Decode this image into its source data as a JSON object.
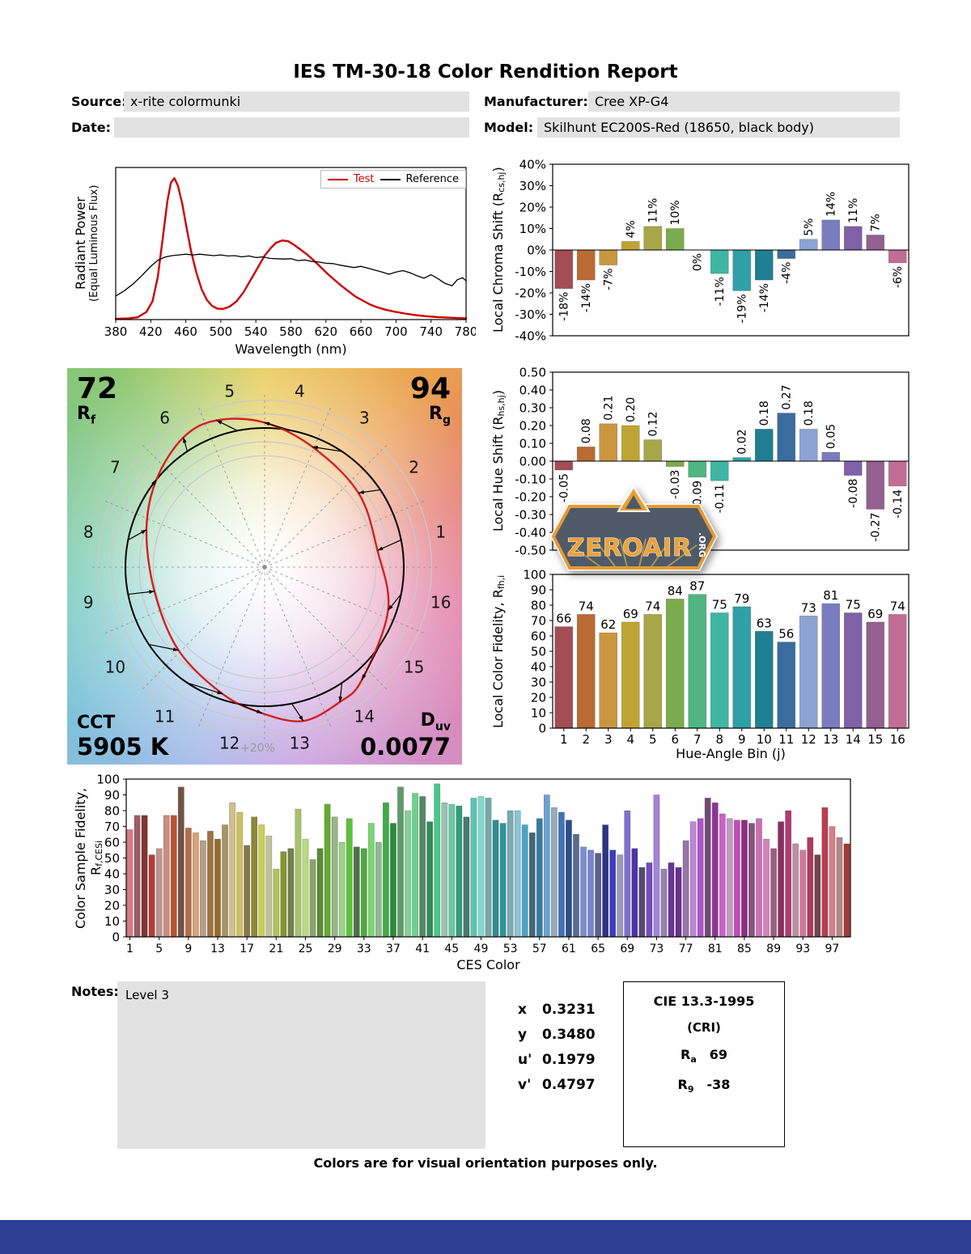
{
  "page": {
    "title": "IES TM-30-18 Color Rendition Report",
    "footer": "Colors are for visual orientation purposes only."
  },
  "header": {
    "source_label": "Source:",
    "source": "x-rite colormunki",
    "date_label": "Date:",
    "date": "",
    "manufacturer_label": "Manufacturer:",
    "manufacturer": "Cree XP-G4",
    "model_label": "Model:",
    "model": "Skilhunt EC200S-Red (18650, black body)"
  },
  "cvg": {
    "rf_value": "72",
    "rf_pre": "R",
    "rf_sub": "f",
    "rg_value": "94",
    "rg_pre": "R",
    "rg_sub": "g",
    "cct_label": "CCT",
    "cct_value": "5905 K",
    "duv_pre": "D",
    "duv_sub": "uv",
    "duv_value": "0.0077",
    "ring_label": "+20%"
  },
  "notes": {
    "label": "Notes:",
    "value": "Level 3"
  },
  "colorimetry": {
    "rows": [
      {
        "label": "x",
        "value": "0.3231"
      },
      {
        "label": "y",
        "value": "0.3480"
      },
      {
        "label": "u'",
        "value": "0.1979"
      },
      {
        "label": "v'",
        "value": "0.4797"
      }
    ]
  },
  "cri_box": {
    "title": "CIE 13.3-1995",
    "subtitle": "(CRI)",
    "ra_pre": "R",
    "ra_sub": "a",
    "ra_value": "69",
    "r9_pre": "R",
    "r9_sub": "9",
    "r9_value": "-38"
  },
  "watermark": {
    "name": "ZEROAIR",
    "org": ".ORG"
  },
  "accent_colors": {
    "test_line": "#cc0000",
    "reference_line": "#000000",
    "footer_bar": "#2d3e93",
    "field_bg": "#e2e2e2"
  },
  "hue_bin_colors": [
    "#a34d55",
    "#bb6b33",
    "#c9963f",
    "#bfa433",
    "#a8a648",
    "#7aab4e",
    "#4fb582",
    "#3fb5a4",
    "#2fa0a8",
    "#1f7f93",
    "#3a6d9e",
    "#8ca3d3",
    "#7a7dbd",
    "#8061a8",
    "#94608f",
    "#c26d93"
  ],
  "chart_data": [
    {
      "id": "spd",
      "type": "line",
      "xlabel": "Wavelength (nm)",
      "ylabel_line1": "Radiant Power",
      "ylabel_line2": "(Equal Luminous Flux)",
      "xlim": [
        380,
        780
      ],
      "xtick_step": 40,
      "ylim": [
        0,
        1
      ],
      "legend": [
        {
          "label": "Test",
          "color": "#cc0000"
        },
        {
          "label": "Reference",
          "color": "#000000"
        }
      ],
      "series": [
        {
          "name": "Test",
          "color": "#cc0000",
          "width": 2.4,
          "points": [
            [
              380,
              0.005
            ],
            [
              395,
              0.008
            ],
            [
              405,
              0.015
            ],
            [
              415,
              0.05
            ],
            [
              422,
              0.12
            ],
            [
              428,
              0.28
            ],
            [
              434,
              0.55
            ],
            [
              439,
              0.78
            ],
            [
              443,
              0.9
            ],
            [
              447,
              0.93
            ],
            [
              451,
              0.88
            ],
            [
              456,
              0.76
            ],
            [
              461,
              0.6
            ],
            [
              466,
              0.45
            ],
            [
              472,
              0.31
            ],
            [
              478,
              0.2
            ],
            [
              484,
              0.13
            ],
            [
              490,
              0.09
            ],
            [
              496,
              0.072
            ],
            [
              503,
              0.07
            ],
            [
              510,
              0.085
            ],
            [
              518,
              0.12
            ],
            [
              526,
              0.18
            ],
            [
              534,
              0.26
            ],
            [
              542,
              0.34
            ],
            [
              550,
              0.42
            ],
            [
              557,
              0.47
            ],
            [
              563,
              0.505
            ],
            [
              570,
              0.52
            ],
            [
              577,
              0.515
            ],
            [
              584,
              0.49
            ],
            [
              591,
              0.46
            ],
            [
              598,
              0.43
            ],
            [
              606,
              0.39
            ],
            [
              614,
              0.345
            ],
            [
              622,
              0.3
            ],
            [
              630,
              0.26
            ],
            [
              638,
              0.22
            ],
            [
              646,
              0.185
            ],
            [
              654,
              0.15
            ],
            [
              662,
              0.125
            ],
            [
              670,
              0.1
            ],
            [
              678,
              0.082
            ],
            [
              688,
              0.065
            ],
            [
              698,
              0.052
            ],
            [
              710,
              0.04
            ],
            [
              722,
              0.03
            ],
            [
              735,
              0.022
            ],
            [
              748,
              0.016
            ],
            [
              762,
              0.012
            ],
            [
              775,
              0.009
            ],
            [
              780,
              0.008
            ]
          ]
        },
        {
          "name": "Reference",
          "color": "#000000",
          "width": 1.3,
          "points": [
            [
              380,
              0.155
            ],
            [
              390,
              0.19
            ],
            [
              400,
              0.235
            ],
            [
              410,
              0.29
            ],
            [
              420,
              0.35
            ],
            [
              428,
              0.39
            ],
            [
              436,
              0.41
            ],
            [
              444,
              0.42
            ],
            [
              452,
              0.425
            ],
            [
              460,
              0.43
            ],
            [
              468,
              0.425
            ],
            [
              476,
              0.43
            ],
            [
              484,
              0.425
            ],
            [
              492,
              0.42
            ],
            [
              500,
              0.425
            ],
            [
              508,
              0.418
            ],
            [
              516,
              0.42
            ],
            [
              524,
              0.412
            ],
            [
              532,
              0.418
            ],
            [
              540,
              0.408
            ],
            [
              548,
              0.412
            ],
            [
              556,
              0.402
            ],
            [
              564,
              0.4
            ],
            [
              572,
              0.398
            ],
            [
              580,
              0.4
            ],
            [
              588,
              0.388
            ],
            [
              596,
              0.392
            ],
            [
              604,
              0.382
            ],
            [
              612,
              0.378
            ],
            [
              620,
              0.37
            ],
            [
              628,
              0.368
            ],
            [
              636,
              0.358
            ],
            [
              644,
              0.35
            ],
            [
              652,
              0.342
            ],
            [
              660,
              0.35
            ],
            [
              668,
              0.338
            ],
            [
              676,
              0.325
            ],
            [
              684,
              0.312
            ],
            [
              692,
              0.298
            ],
            [
              700,
              0.312
            ],
            [
              708,
              0.322
            ],
            [
              716,
              0.308
            ],
            [
              724,
              0.288
            ],
            [
              732,
              0.272
            ],
            [
              740,
              0.295
            ],
            [
              748,
              0.268
            ],
            [
              756,
              0.238
            ],
            [
              764,
              0.222
            ],
            [
              770,
              0.262
            ],
            [
              776,
              0.275
            ],
            [
              780,
              0.255
            ]
          ]
        }
      ]
    },
    {
      "id": "chroma_shift",
      "type": "bar",
      "ylabel": {
        "pre": "Local Chroma Shift (R",
        "sub": "cs,hj",
        "post": ")"
      },
      "ylim": [
        -0.4,
        0.4
      ],
      "ytick_step": 0.1,
      "ytick_format": "percent",
      "categories": [
        1,
        2,
        3,
        4,
        5,
        6,
        7,
        8,
        9,
        10,
        11,
        12,
        13,
        14,
        15,
        16
      ],
      "values": [
        -0.18,
        -0.14,
        -0.07,
        0.04,
        0.11,
        0.1,
        0.0,
        -0.11,
        -0.19,
        -0.14,
        -0.04,
        0.05,
        0.14,
        0.11,
        0.07,
        -0.06
      ],
      "labels": [
        "-18%",
        "-14%",
        "-7%",
        "4%",
        "11%",
        "10%",
        "0%",
        "-11%",
        "-19%",
        "-14%",
        "-4%",
        "5%",
        "14%",
        "11%",
        "7%",
        "-6%"
      ],
      "label_style": "rotated"
    },
    {
      "id": "hue_shift",
      "type": "bar",
      "ylabel": {
        "pre": "Local Hue Shift (R",
        "sub": "hs,hj",
        "post": ")"
      },
      "ylim": [
        -0.5,
        0.5
      ],
      "ytick_step": 0.1,
      "ytick_format": "fixed2",
      "categories": [
        1,
        2,
        3,
        4,
        5,
        6,
        7,
        8,
        9,
        10,
        11,
        12,
        13,
        14,
        15,
        16
      ],
      "values": [
        -0.05,
        0.08,
        0.21,
        0.2,
        0.12,
        -0.03,
        -0.09,
        -0.11,
        0.02,
        0.18,
        0.27,
        0.18,
        0.05,
        -0.08,
        -0.27,
        -0.14
      ],
      "labels": [
        "-0.05",
        "0.08",
        "0.21",
        "0.20",
        "0.12",
        "-0.03",
        "-0.09",
        "-0.11",
        "0.02",
        "0.18",
        "0.27",
        "0.18",
        "0.05",
        "-0.08",
        "-0.27",
        "-0.14"
      ],
      "label_style": "rotated"
    },
    {
      "id": "local_fidelity",
      "type": "bar",
      "ylabel": {
        "pre": "Local Color Fidelity, R",
        "sub": "fh,i",
        "post": ""
      },
      "xlabel": "Hue-Angle Bin (j)",
      "ylim": [
        0,
        100
      ],
      "ytick_step": 10,
      "ytick_format": "int",
      "categories": [
        1,
        2,
        3,
        4,
        5,
        6,
        7,
        8,
        9,
        10,
        11,
        12,
        13,
        14,
        15,
        16
      ],
      "values": [
        66,
        74,
        62,
        69,
        74,
        84,
        87,
        75,
        79,
        63,
        56,
        73,
        81,
        75,
        69,
        74
      ],
      "labels": [
        "66",
        "74",
        "62",
        "69",
        "74",
        "84",
        "87",
        "75",
        "79",
        "63",
        "56",
        "73",
        "81",
        "75",
        "69",
        "74"
      ],
      "label_style": "top",
      "xticks_all": true
    },
    {
      "id": "ces",
      "type": "bar",
      "ylabel": {
        "pre": "Color Sample Fidelity, R",
        "sub": "f,CESi",
        "post": ""
      },
      "xlabel": "CES Color",
      "ylim": [
        0,
        100
      ],
      "ytick_step": 10,
      "ytick_format": "int",
      "xtick_values": [
        1,
        5,
        9,
        13,
        17,
        21,
        25,
        29,
        33,
        37,
        41,
        45,
        49,
        53,
        57,
        61,
        65,
        69,
        73,
        77,
        81,
        85,
        89,
        93,
        97
      ],
      "values": [
        68,
        77,
        77,
        52,
        56,
        77,
        77,
        95,
        69,
        66,
        61,
        67,
        62,
        71,
        85,
        79,
        58,
        76,
        71,
        64,
        43,
        54,
        56,
        81,
        62,
        49,
        56,
        84,
        76,
        60,
        75,
        57,
        56,
        72,
        60,
        85,
        72,
        95,
        80,
        91,
        89,
        73,
        97,
        85,
        84,
        83,
        76,
        88,
        89,
        88,
        74,
        72,
        80,
        80,
        71,
        66,
        75,
        90,
        82,
        79,
        74,
        65,
        57,
        55,
        53,
        71,
        55,
        52,
        80,
        56,
        44,
        47,
        90,
        43,
        47,
        44,
        61,
        73,
        75,
        88,
        85,
        78,
        75,
        74,
        74,
        72,
        75,
        62,
        56,
        73,
        80,
        59,
        55,
        63,
        52,
        82,
        70,
        63,
        59
      ]
    },
    {
      "id": "cvg",
      "type": "color_vector",
      "rf": 72,
      "rg": 94,
      "cct": "5905 K",
      "duv": "0.0077",
      "chroma_shift": [
        -0.18,
        -0.14,
        -0.07,
        0.04,
        0.11,
        0.1,
        0.0,
        -0.11,
        -0.19,
        -0.14,
        -0.04,
        0.05,
        0.14,
        0.11,
        0.07,
        -0.06
      ],
      "hue_shift": [
        -0.05,
        0.08,
        0.21,
        0.2,
        0.12,
        -0.03,
        -0.09,
        -0.11,
        0.02,
        0.18,
        0.27,
        0.18,
        0.05,
        -0.08,
        -0.27,
        -0.14
      ]
    }
  ]
}
